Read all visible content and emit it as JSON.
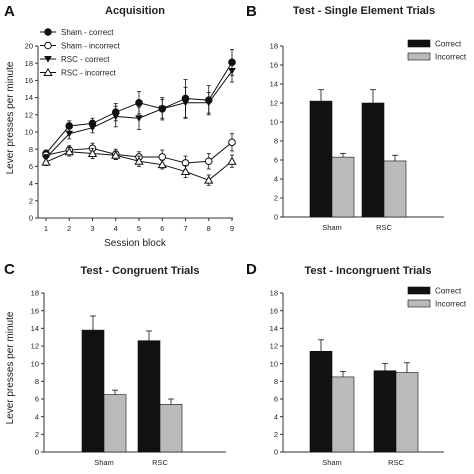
{
  "colors": {
    "dark": "#111111",
    "light": "#bbbbbb",
    "axis": "#333333"
  },
  "chart_data": [
    {
      "panel": "A",
      "type": "line",
      "title": "Acquisition",
      "xlabel": "Session block",
      "ylabel": "Lever presses per minute",
      "ylim": [
        0,
        20
      ],
      "yticks": [
        0,
        2,
        4,
        6,
        8,
        10,
        12,
        14,
        16,
        18,
        20
      ],
      "x": [
        1,
        2,
        3,
        4,
        5,
        6,
        7,
        8,
        9
      ],
      "legend_position": "top-left",
      "series": [
        {
          "name": "Sham - correct",
          "marker": "circle-filled",
          "values": [
            7.5,
            10.7,
            11.0,
            12.3,
            13.4,
            12.7,
            13.9,
            13.7,
            18.1
          ],
          "error": [
            0.4,
            0.6,
            0.6,
            1.0,
            1.3,
            1.3,
            2.2,
            1.7,
            1.5
          ]
        },
        {
          "name": "Sham - incorrect",
          "marker": "circle-open",
          "values": [
            7.3,
            7.9,
            8.1,
            7.4,
            7.1,
            7.1,
            6.4,
            6.6,
            8.8
          ],
          "error": [
            0.4,
            0.5,
            0.6,
            0.6,
            0.6,
            0.8,
            0.8,
            0.9,
            1.0
          ]
        },
        {
          "name": "RSC - correct",
          "marker": "triangle-down-filled",
          "values": [
            7.0,
            9.8,
            10.5,
            11.8,
            11.6,
            12.7,
            13.4,
            13.4,
            17.1
          ],
          "error": [
            0.4,
            0.6,
            0.6,
            1.2,
            1.3,
            1.1,
            1.8,
            1.2,
            1.3
          ]
        },
        {
          "name": "RSC - incorrect",
          "marker": "triangle-up-open",
          "values": [
            6.5,
            7.7,
            7.5,
            7.3,
            6.6,
            6.2,
            5.4,
            4.4,
            6.6
          ],
          "error": [
            0.4,
            0.5,
            0.6,
            0.5,
            0.6,
            0.5,
            0.7,
            0.6,
            0.7
          ]
        }
      ]
    },
    {
      "panel": "B",
      "type": "bar",
      "title": "Test - Single Element Trials",
      "xlabel": "",
      "ylabel": "",
      "ylim": [
        0,
        18
      ],
      "yticks": [
        0,
        2,
        4,
        6,
        8,
        10,
        12,
        14,
        16,
        18
      ],
      "categories": [
        "Sham",
        "RSC"
      ],
      "legend_position": "top-right",
      "series": [
        {
          "name": "Correct",
          "color": "dark",
          "values": [
            12.2,
            12.0
          ],
          "error": [
            1.2,
            1.4
          ]
        },
        {
          "name": "Incorrect",
          "color": "light",
          "values": [
            6.3,
            5.9
          ],
          "error": [
            0.4,
            0.6
          ]
        }
      ]
    },
    {
      "panel": "C",
      "type": "bar",
      "title": "Test - Congruent Trials",
      "xlabel": "",
      "ylabel": "Lever presses per minute",
      "ylim": [
        0,
        18
      ],
      "yticks": [
        0,
        2,
        4,
        6,
        8,
        10,
        12,
        14,
        16,
        18
      ],
      "categories": [
        "Sham",
        "RSC"
      ],
      "series": [
        {
          "name": "Correct",
          "color": "dark",
          "values": [
            13.8,
            12.6
          ],
          "error": [
            1.6,
            1.1
          ]
        },
        {
          "name": "Incorrect",
          "color": "light",
          "values": [
            6.5,
            5.4
          ],
          "error": [
            0.5,
            0.6
          ]
        }
      ]
    },
    {
      "panel": "D",
      "type": "bar",
      "title": "Test - Incongruent Trials",
      "xlabel": "",
      "ylabel": "",
      "ylim": [
        0,
        18
      ],
      "yticks": [
        0,
        2,
        4,
        6,
        8,
        10,
        12,
        14,
        16,
        18
      ],
      "categories": [
        "Sham",
        "RSC"
      ],
      "legend_position": "top-right",
      "series": [
        {
          "name": "Correct",
          "color": "dark",
          "values": [
            11.4,
            9.2
          ],
          "error": [
            1.3,
            0.8
          ]
        },
        {
          "name": "Incorrect",
          "color": "light",
          "values": [
            8.5,
            9.0
          ],
          "error": [
            0.6,
            1.1
          ]
        }
      ]
    }
  ]
}
